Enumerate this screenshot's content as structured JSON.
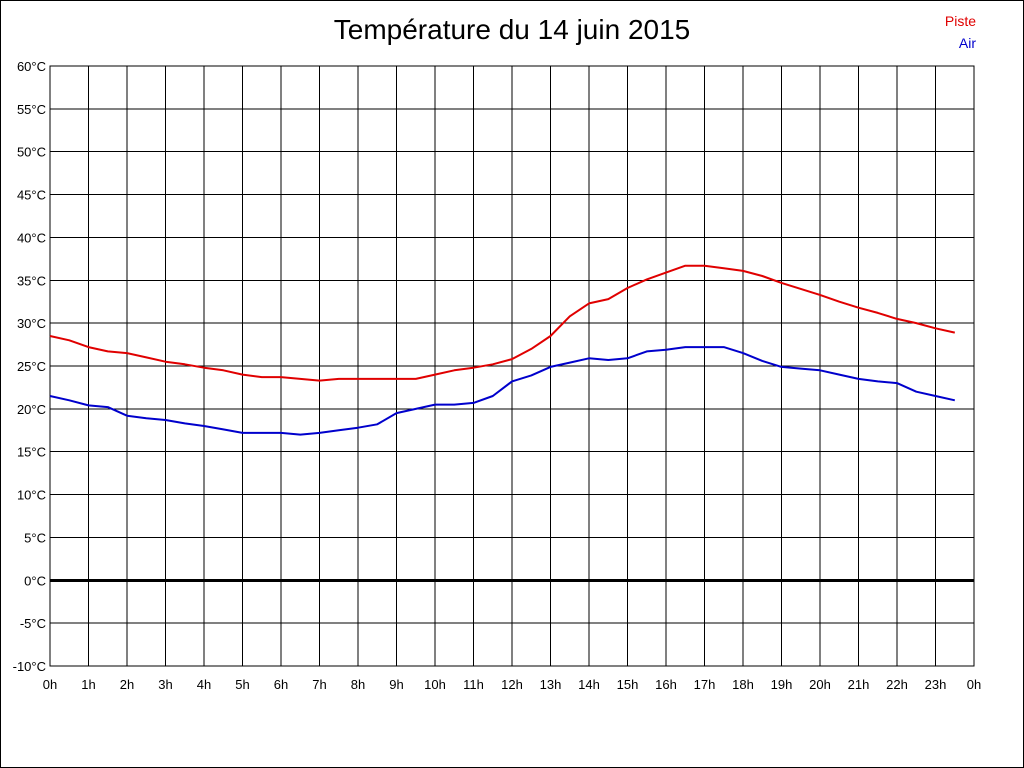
{
  "chart_data": {
    "type": "line",
    "title": "Température du 14 juin 2015",
    "xlabel": "",
    "ylabel": "",
    "x_ticks": [
      "0h",
      "1h",
      "2h",
      "3h",
      "4h",
      "5h",
      "6h",
      "7h",
      "8h",
      "9h",
      "10h",
      "11h",
      "12h",
      "13h",
      "14h",
      "15h",
      "16h",
      "17h",
      "18h",
      "19h",
      "20h",
      "21h",
      "22h",
      "23h",
      "0h"
    ],
    "y_ticks": [
      "60°C",
      "55°C",
      "50°C",
      "45°C",
      "40°C",
      "35°C",
      "30°C",
      "25°C",
      "20°C",
      "15°C",
      "10°C",
      "5°C",
      "0°C",
      "-5°C",
      "-10°C"
    ],
    "xlim": [
      0,
      24
    ],
    "ylim": [
      -10,
      60
    ],
    "grid": true,
    "legend_position": "top-right",
    "x": [
      0,
      0.5,
      1,
      1.5,
      2,
      2.5,
      3,
      3.5,
      4,
      4.5,
      5,
      5.5,
      6,
      6.5,
      7,
      7.5,
      8,
      8.5,
      9,
      9.5,
      10,
      10.5,
      11,
      11.5,
      12,
      12.5,
      13,
      13.5,
      14,
      14.5,
      15,
      15.5,
      16,
      16.5,
      17,
      17.5,
      18,
      18.5,
      19,
      19.5,
      20,
      20.5,
      21,
      21.5,
      22,
      22.5,
      23,
      23.5
    ],
    "series": [
      {
        "name": "Piste",
        "color": "#e00000",
        "values": [
          28.5,
          28,
          27.2,
          26.7,
          26.5,
          26,
          25.5,
          25.2,
          24.8,
          24.5,
          24,
          23.7,
          23.7,
          23.5,
          23.3,
          23.5,
          23.5,
          23.5,
          23.5,
          23.5,
          24,
          24.5,
          24.8,
          25.2,
          25.8,
          27,
          28.5,
          30.8,
          32.3,
          32.8,
          34.1,
          35.1,
          35.9,
          36.7,
          36.7,
          36.4,
          36.1,
          35.5,
          34.7,
          34,
          33.3,
          32.5,
          31.8,
          31.2,
          30.5,
          30,
          29.4,
          28.9
        ]
      },
      {
        "name": "Air",
        "color": "#0000cc",
        "values": [
          21.5,
          21,
          20.4,
          20.2,
          19.2,
          18.9,
          18.7,
          18.3,
          18,
          17.6,
          17.2,
          17.2,
          17.2,
          17,
          17.2,
          17.5,
          17.8,
          18.2,
          19.5,
          20,
          20.5,
          20.5,
          20.7,
          21.5,
          23.2,
          23.9,
          24.9,
          25.4,
          25.9,
          25.7,
          25.9,
          26.7,
          26.9,
          27.2,
          27.2,
          27.2,
          26.5,
          25.6,
          24.9,
          24.7,
          24.5,
          24,
          23.5,
          23.2,
          23,
          22,
          21.5,
          21
        ]
      }
    ]
  },
  "colors": {
    "background": "#ffffff",
    "grid": "#000000",
    "zero_line": "#000000"
  }
}
